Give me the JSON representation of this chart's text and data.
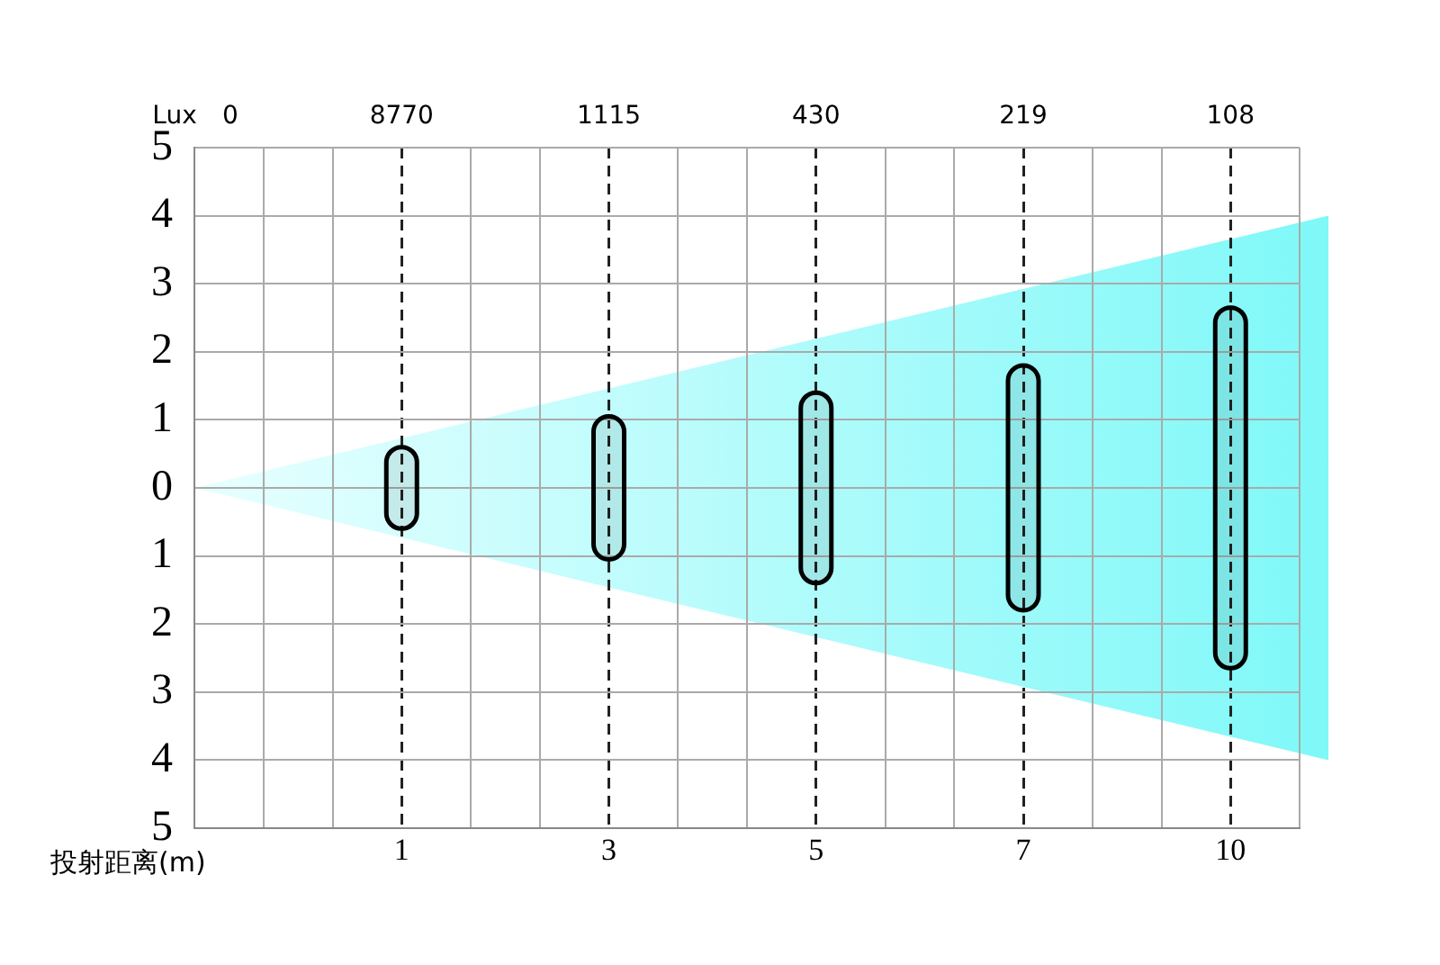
{
  "chart_data": {
    "type": "bar",
    "xlabel": "投射距离(m)",
    "categories": [
      null,
      null,
      null,
      "1",
      null,
      null,
      "3",
      null,
      null,
      "5",
      null,
      null,
      "7",
      null,
      null,
      "10",
      null
    ],
    "values": [
      null,
      null,
      null,
      1.2,
      null,
      null,
      2.1,
      null,
      null,
      2.8,
      null,
      null,
      3.6,
      null,
      null,
      5.3,
      null
    ],
    "base": [
      null,
      null,
      null,
      -0.6,
      null,
      null,
      -1.05,
      null,
      null,
      -1.4,
      null,
      null,
      -1.8,
      null,
      null,
      -2.65,
      null
    ],
    "color": "#000000",
    "ylim": [
      -5,
      5
    ],
    "yticks": [
      {
        "value": -5,
        "label": "5"
      },
      {
        "value": -4,
        "label": "4"
      },
      {
        "value": -3,
        "label": "3"
      },
      {
        "value": -2,
        "label": "2"
      },
      {
        "value": -1,
        "label": "1"
      },
      0,
      1,
      2,
      3,
      4,
      5
    ],
    "grid": true,
    "annotations": [
      "Lux",
      "0",
      "8770",
      "1115",
      "430",
      "219",
      "108"
    ]
  }
}
